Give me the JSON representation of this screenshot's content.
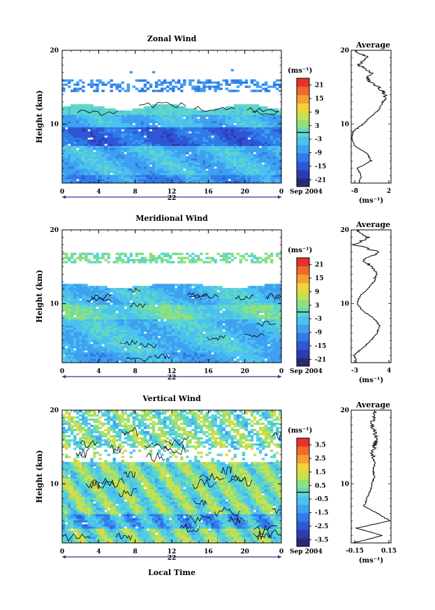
{
  "colors": {
    "scale": [
      "#2b2a76",
      "#2f3bb0",
      "#2d57d6",
      "#2f7be8",
      "#3fa0f0",
      "#4bc1f0",
      "#5fd6c8",
      "#8ee07e",
      "#c8e050",
      "#f0d438",
      "#f5a030",
      "#ef6a2c",
      "#e8312a"
    ],
    "contour": "#000000",
    "zero_line": "#000000"
  },
  "panels": [
    {
      "title": "Zonal Wind",
      "ylabel": "Height (km)",
      "y_ticks": [
        "10",
        "20"
      ],
      "x_ticks": [
        "0",
        "4",
        "8",
        "12",
        "16",
        "20",
        "0"
      ],
      "day_label": "22",
      "date_label": "Sep 2004",
      "units_label": "(ms⁻¹)",
      "colorbar_ticks": [
        "21",
        "15",
        "9",
        "3",
        "-3",
        "-9",
        "-15",
        "-21"
      ],
      "colorbar_zero": 0.0,
      "colorbar_range": [
        -24,
        24
      ],
      "avg_title": "Average",
      "avg_x_ticks": [
        "-8",
        "2"
      ],
      "avg_y_ticks": [
        "10",
        "20"
      ],
      "avg_units": "(ms⁻¹)"
    },
    {
      "title": "Meridional Wind",
      "ylabel": "Height (km)",
      "y_ticks": [
        "10",
        "20"
      ],
      "x_ticks": [
        "0",
        "4",
        "8",
        "12",
        "16",
        "20",
        "0"
      ],
      "day_label": "22",
      "date_label": "Sep 2004",
      "units_label": "(ms⁻¹)",
      "colorbar_ticks": [
        "21",
        "15",
        "9",
        "3",
        "-3",
        "-9",
        "-15",
        "-21"
      ],
      "colorbar_zero": 0.0,
      "colorbar_range": [
        -24,
        24
      ],
      "avg_title": "Average",
      "avg_x_ticks": [
        "-3",
        "4"
      ],
      "avg_y_ticks": [
        "10",
        "20"
      ],
      "avg_units": "(ms⁻¹)"
    },
    {
      "title": "Vertical Wind",
      "ylabel": "Height (km)",
      "y_ticks": [
        "10",
        "20"
      ],
      "x_ticks": [
        "0",
        "4",
        "8",
        "12",
        "16",
        "20",
        "0"
      ],
      "day_label": "22",
      "date_label": "Sep 2004",
      "units_label": "(ms⁻¹)",
      "colorbar_ticks": [
        "3.5",
        "2.5",
        "1.5",
        "0.5",
        "-0.5",
        "-1.5",
        "-2.5",
        "-3.5"
      ],
      "colorbar_zero": 0.0,
      "colorbar_range": [
        -4,
        4
      ],
      "avg_title": "Average",
      "avg_x_ticks": [
        "-0.15",
        "0.15"
      ],
      "avg_y_ticks": [
        "10",
        "20"
      ],
      "avg_units": "(ms⁻¹)"
    }
  ],
  "xlabel_bottom": "Local Time",
  "chart_data": [
    {
      "type": "heatmap",
      "title": "Zonal Wind",
      "xlabel": "",
      "ylabel": "Height (km)",
      "xlim": [
        0,
        24
      ],
      "ylim": [
        2,
        20
      ],
      "x_tick_values": [
        0,
        4,
        8,
        12,
        16,
        20,
        24
      ],
      "y_tick_values": [
        10,
        20
      ],
      "colorbar_range": [
        -24,
        24
      ],
      "features": [
        {
          "height_range": [
            2,
            12.5
          ],
          "typical_value": -6
        },
        {
          "height_range": [
            7,
            9.5
          ],
          "typical_value": -12
        },
        {
          "height_range": [
            14.5,
            16
          ],
          "typical_value": -8
        }
      ],
      "average_profile": {
        "type": "line",
        "xlim": [
          -8,
          2
        ],
        "heights": [
          2,
          3,
          4,
          5,
          6,
          7,
          8,
          9,
          10,
          11,
          12,
          13,
          14,
          15,
          16,
          17,
          18,
          19,
          20
        ],
        "values": [
          -6,
          -5.5,
          -6.5,
          -3,
          -4,
          -7,
          -8,
          -7.5,
          -5,
          -3,
          -1,
          0,
          0.5,
          -1,
          -4,
          -3,
          -6,
          -4,
          -7
        ]
      }
    },
    {
      "type": "heatmap",
      "title": "Meridional Wind",
      "xlabel": "",
      "ylabel": "Height (km)",
      "xlim": [
        0,
        24
      ],
      "ylim": [
        2,
        20
      ],
      "x_tick_values": [
        0,
        4,
        8,
        12,
        16,
        20,
        24
      ],
      "y_tick_values": [
        10,
        20
      ],
      "colorbar_range": [
        -24,
        24
      ],
      "features": [
        {
          "height_range": [
            2,
            12.5
          ],
          "typical_value": -3
        },
        {
          "height_range": [
            8,
            10
          ],
          "typical_value": 2
        },
        {
          "height_range": [
            16,
            17
          ],
          "typical_value": 3
        }
      ],
      "average_profile": {
        "type": "line",
        "xlim": [
          -3,
          4
        ],
        "heights": [
          2,
          3,
          4,
          5,
          6,
          7,
          8,
          9,
          10,
          11,
          12,
          13,
          14,
          15,
          16,
          17,
          18,
          19,
          20
        ],
        "values": [
          -2,
          -2.5,
          -1,
          0.5,
          1.5,
          2,
          1,
          -1,
          -2,
          -1.5,
          0,
          1,
          1.5,
          0.5,
          -1,
          2,
          -2.5,
          0,
          -2
        ]
      }
    },
    {
      "type": "heatmap",
      "title": "Vertical Wind",
      "xlabel": "Local Time",
      "ylabel": "Height (km)",
      "xlim": [
        0,
        24
      ],
      "ylim": [
        2,
        20
      ],
      "x_tick_values": [
        0,
        4,
        8,
        12,
        16,
        20,
        24
      ],
      "y_tick_values": [
        10,
        20
      ],
      "colorbar_range": [
        -4,
        4
      ],
      "features": [
        {
          "height_range": [
            2,
            13
          ],
          "typical_value": 0.3
        },
        {
          "height_range": [
            15,
            20
          ],
          "typical_value": 0.2
        }
      ],
      "average_profile": {
        "type": "line",
        "xlim": [
          -0.2,
          0.18
        ],
        "heights": [
          2,
          3,
          4,
          5,
          6,
          7,
          8,
          9,
          10,
          11,
          12,
          13,
          14,
          15,
          16,
          17,
          18,
          19,
          20
        ],
        "values": [
          -0.18,
          0.1,
          -0.15,
          0.17,
          0.05,
          -0.08,
          -0.05,
          -0.02,
          0.0,
          0.02,
          0.01,
          0.03,
          0.0,
          0.02,
          0.04,
          0.02,
          0.0,
          0.01,
          0.02
        ]
      }
    }
  ]
}
